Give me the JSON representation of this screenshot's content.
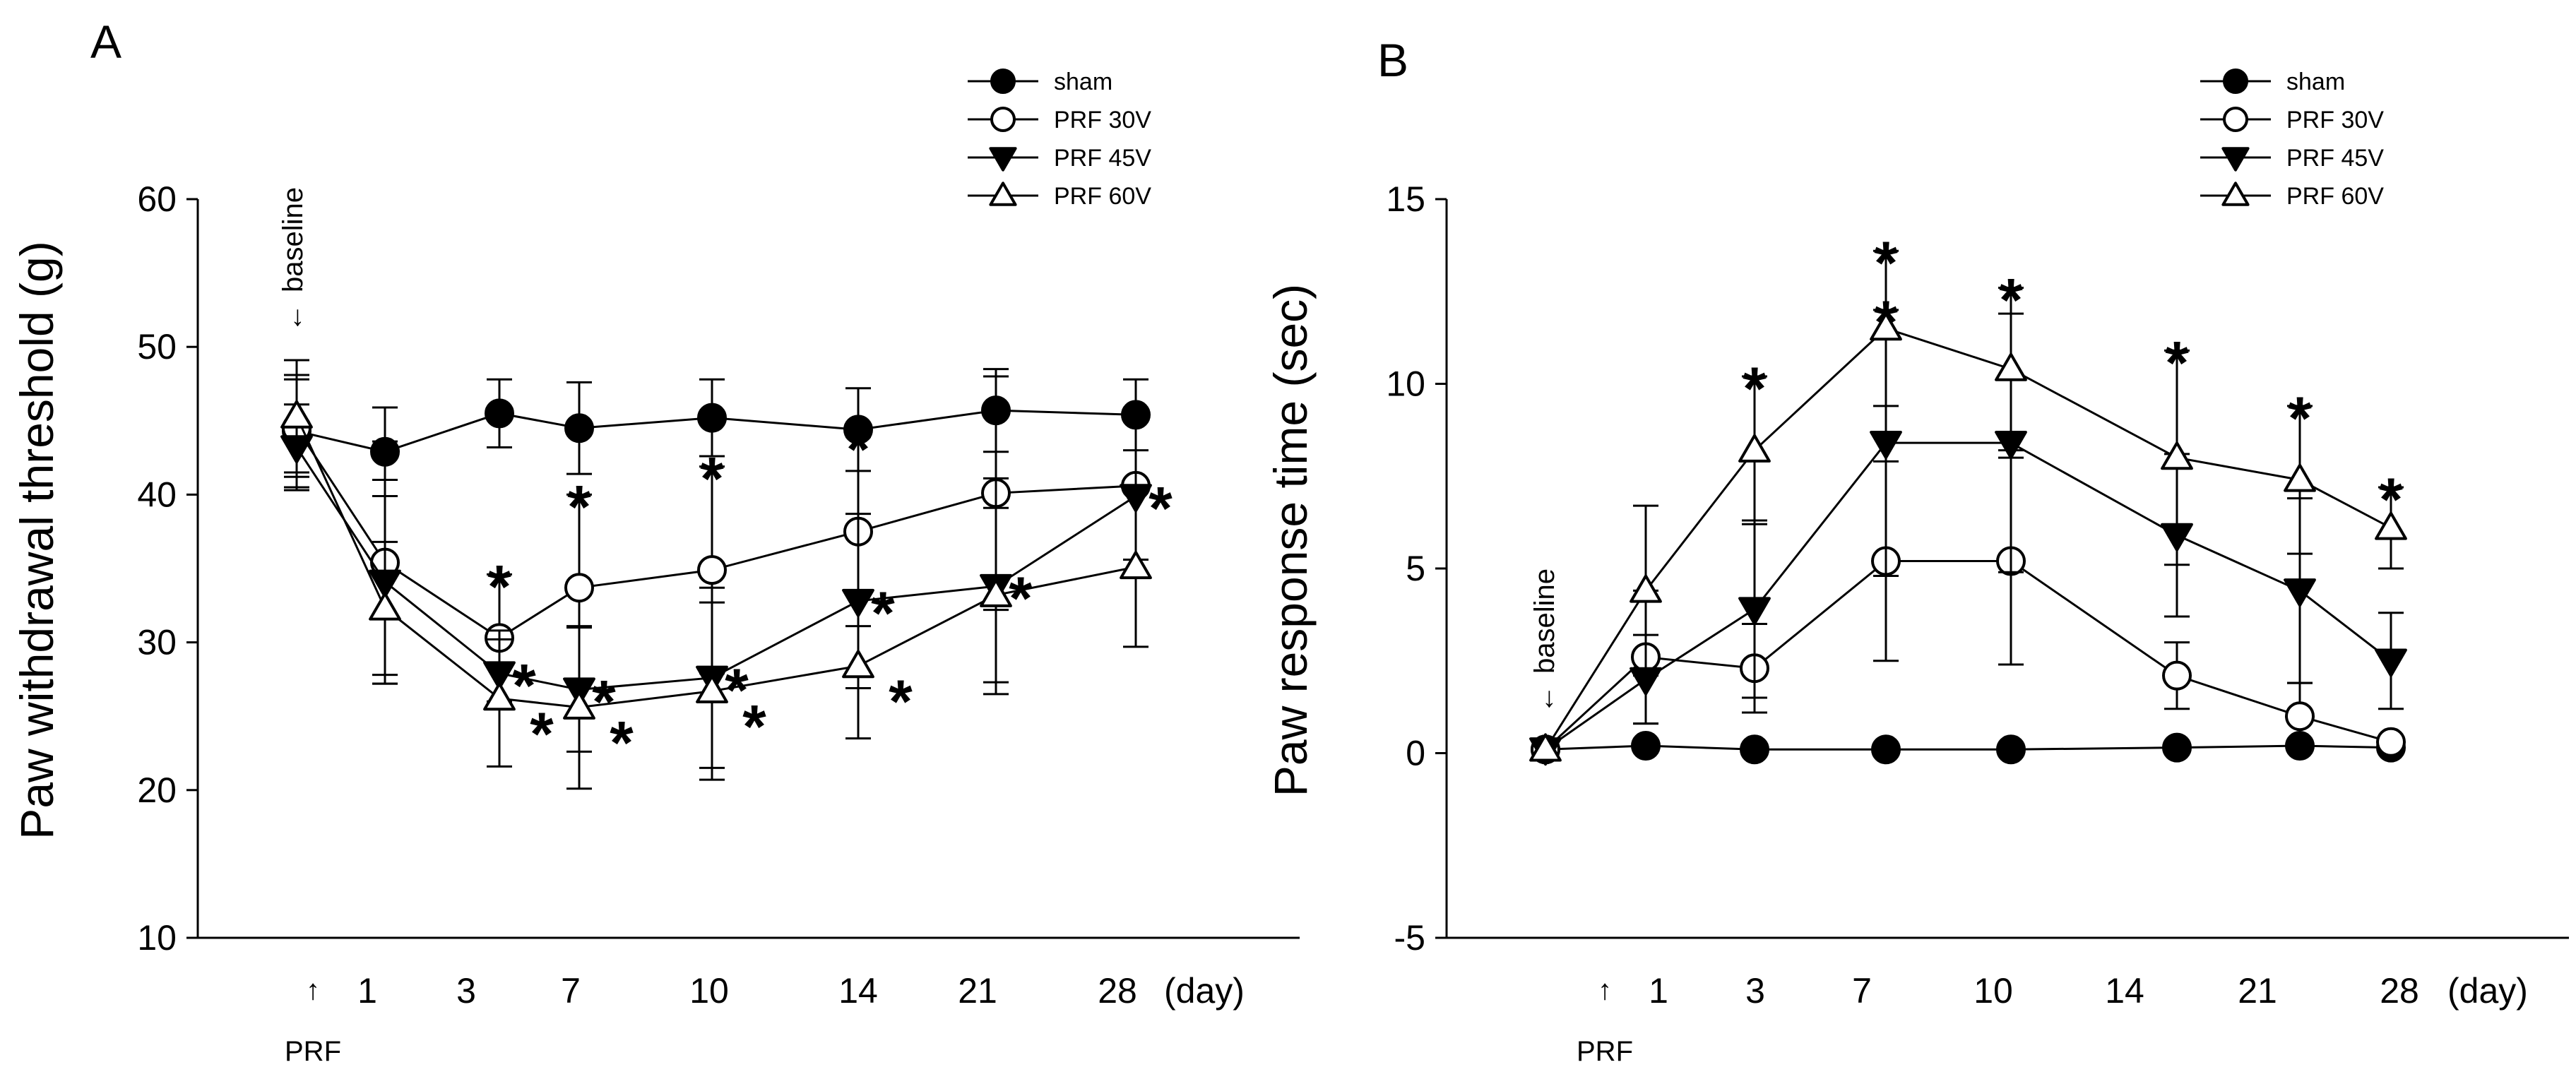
{
  "chart_data": [
    {
      "panel_label": "A",
      "type": "line",
      "ylabel": "Paw withdrawal threshold (g)",
      "ylim": [
        10,
        60
      ],
      "yticks": [
        10,
        20,
        30,
        40,
        50,
        60
      ],
      "x_tick_labels": [
        "1",
        "3",
        "7",
        "10",
        "14",
        "21",
        "28"
      ],
      "x_unit_label": "(day)",
      "prf_marker_label": "PRF",
      "baseline_label": "baseline",
      "legend": [
        "sham",
        "PRF 30V",
        "PRF 45V",
        "PRF 60V"
      ],
      "series": [
        {
          "name": "sham",
          "marker": "filled-circle",
          "points": [
            [
              0,
              44.3,
              3.8
            ],
            [
              1,
              42.9,
              3.0
            ],
            [
              3,
              45.5,
              2.3
            ],
            [
              7,
              44.5,
              3.1
            ],
            [
              10,
              45.2,
              2.6
            ],
            [
              14,
              44.4,
              2.8
            ],
            [
              21,
              45.7,
              2.8
            ],
            [
              28,
              45.4,
              2.4
            ]
          ]
        },
        {
          "name": "PRF 30V",
          "marker": "open-circle",
          "points": [
            [
              0,
              44.5,
              3.3
            ],
            [
              1,
              35.4,
              8.2
            ],
            [
              3,
              30.3,
              4.3
            ],
            [
              7,
              33.7,
              6.3
            ],
            [
              10,
              34.9,
              7.0
            ],
            [
              14,
              37.5,
              6.4
            ],
            [
              21,
              40.1,
              7.9
            ],
            [
              28,
              40.6,
              5.0
            ]
          ]
        },
        {
          "name": "PRF 45V",
          "marker": "filled-triangle-down",
          "points": [
            [
              0,
              43.2,
              2.9
            ],
            [
              1,
              34.1,
              6.9
            ],
            [
              3,
              27.9,
              2.3
            ],
            [
              7,
              26.8,
              4.2
            ],
            [
              10,
              27.6,
              6.1
            ],
            [
              14,
              32.8,
              5.9
            ],
            [
              21,
              33.8,
              7.3
            ],
            [
              28,
              39.9,
              5.4
            ]
          ]
        },
        {
          "name": "PRF 60V",
          "marker": "open-triangle-up",
          "points": [
            [
              0,
              45.3,
              3.8
            ],
            [
              1,
              32.3,
              4.5
            ],
            [
              3,
              26.2,
              4.6
            ],
            [
              7,
              25.6,
              5.5
            ],
            [
              10,
              26.7,
              6.0
            ],
            [
              14,
              28.4,
              4.9
            ],
            [
              21,
              33.2,
              5.9
            ],
            [
              28,
              35.1,
              5.4
            ]
          ]
        }
      ],
      "significance": [
        {
          "series": "PRF 30V",
          "days": [
            3,
            7,
            10,
            14
          ]
        },
        {
          "series": "PRF 45V",
          "days": [
            3,
            7,
            10,
            14,
            21,
            28
          ]
        },
        {
          "series": "PRF 60V",
          "days": [
            3,
            7,
            10,
            14
          ]
        }
      ]
    },
    {
      "panel_label": "B",
      "type": "line",
      "ylabel": "Paw response time (sec)",
      "ylim": [
        -5,
        15
      ],
      "yticks": [
        -5,
        0,
        5,
        10,
        15
      ],
      "x_tick_labels": [
        "1",
        "3",
        "7",
        "10",
        "14",
        "21",
        "28"
      ],
      "x_unit_label": "(day)",
      "prf_marker_label": "PRF",
      "baseline_label": "baseline",
      "legend": [
        "sham",
        "PRF 30V",
        "PRF 45V",
        "PRF 60V"
      ],
      "series": [
        {
          "name": "sham",
          "marker": "filled-circle",
          "points": [
            [
              0,
              0.1,
              0
            ],
            [
              1,
              0.2,
              0
            ],
            [
              3,
              0.1,
              0
            ],
            [
              7,
              0.1,
              0
            ],
            [
              10,
              0.1,
              0
            ],
            [
              14,
              0.15,
              0
            ],
            [
              21,
              0.2,
              0
            ],
            [
              28,
              0.15,
              0
            ]
          ]
        },
        {
          "name": "PRF 30V",
          "marker": "open-circle",
          "points": [
            [
              0,
              0.1,
              0
            ],
            [
              1,
              2.6,
              1.8
            ],
            [
              3,
              2.3,
              1.2
            ],
            [
              7,
              5.2,
              2.7
            ],
            [
              10,
              5.2,
              2.8
            ],
            [
              14,
              2.1,
              0.9
            ],
            [
              21,
              1.0,
              0.9
            ],
            [
              28,
              0.3,
              0
            ]
          ]
        },
        {
          "name": "PRF 45V",
          "marker": "filled-triangle-down",
          "points": [
            [
              0,
              0.1,
              0
            ],
            [
              1,
              2.0,
              1.2
            ],
            [
              3,
              3.9,
              2.4
            ],
            [
              7,
              8.4,
              3.6
            ],
            [
              10,
              8.4,
              3.5
            ],
            [
              14,
              5.9,
              2.2
            ],
            [
              21,
              4.4,
              2.5
            ],
            [
              28,
              2.5,
              1.3
            ]
          ]
        },
        {
          "name": "PRF 60V",
          "marker": "open-triangle-up",
          "points": [
            [
              0,
              0.1,
              0
            ],
            [
              1,
              4.4,
              2.3
            ],
            [
              3,
              8.2,
              2.0
            ],
            [
              7,
              11.5,
              2.1
            ],
            [
              10,
              10.4,
              2.2
            ],
            [
              14,
              8.0,
              2.9
            ],
            [
              21,
              7.4,
              2.0
            ],
            [
              28,
              6.1,
              1.1
            ]
          ]
        }
      ],
      "significance": [
        {
          "series": "PRF 45V",
          "days": [
            7
          ]
        },
        {
          "series": "PRF 60V",
          "days": [
            3,
            7,
            10,
            14,
            21,
            28
          ]
        }
      ]
    }
  ]
}
